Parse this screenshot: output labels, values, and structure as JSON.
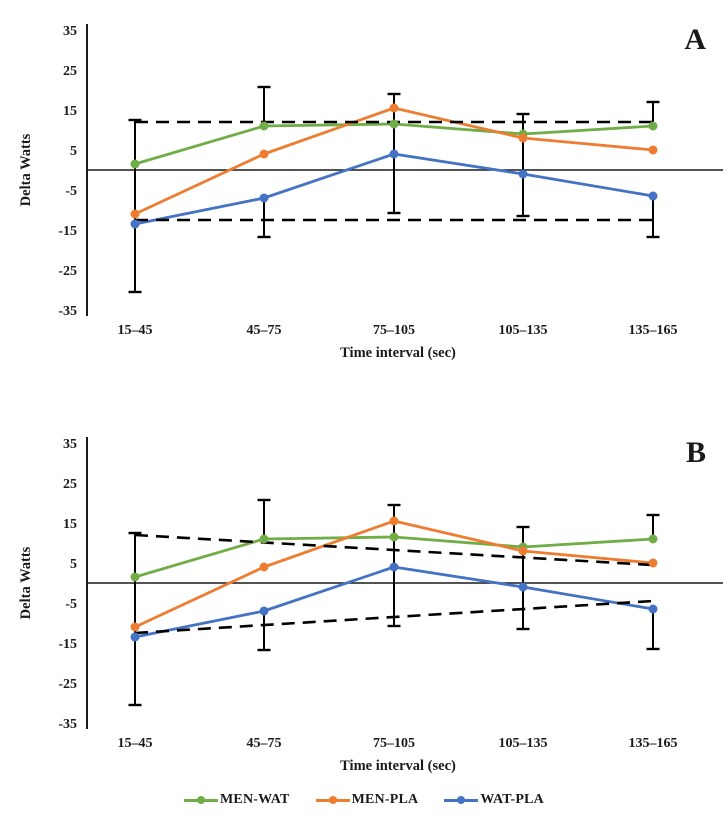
{
  "figure": {
    "background": "#ffffff",
    "axis_color": "#1a1a1a",
    "error_bar_color": "#000000",
    "dashed_line_color": "#000000"
  },
  "chart_data": {
    "type": "line",
    "categories": [
      "15–45",
      "45–75",
      "75–105",
      "105–135",
      "135–165"
    ],
    "xlabel": "Time interval (sec)",
    "ylabel": "Delta Watts",
    "ylim": [
      -35,
      35
    ],
    "yticks": [
      35,
      25,
      15,
      5,
      -5,
      -15,
      -25,
      -35
    ],
    "legend_position": "bottom-center",
    "grid": false,
    "panels": [
      {
        "label": "A",
        "series": [
          {
            "name": "MEN-WAT",
            "color": "#70AD47",
            "values": [
              1.5,
              11,
              11.5,
              9,
              11
            ]
          },
          {
            "name": "MEN-PLA",
            "color": "#ED7D31",
            "values": [
              -11,
              4,
              15.5,
              8,
              5
            ]
          },
          {
            "name": "WAT-PLA",
            "color": "#4472C4",
            "values": [
              -13.5,
              -7,
              4,
              -1,
              -6.5
            ]
          }
        ],
        "dashed_lines": [
          {
            "name": "upper-reference",
            "y_start": 12,
            "y_end": 12
          },
          {
            "name": "lower-reference",
            "y_start": -12.5,
            "y_end": -12.5
          }
        ],
        "error_bars": [
          {
            "cat": 0,
            "top": 12.5,
            "bottom": -30.5,
            "cap_top": true,
            "cap_bottom": true
          },
          {
            "cat": 1,
            "top": 20.75,
            "bottom": 11,
            "cap_top": true,
            "cap_bottom": false
          },
          {
            "cat": 1,
            "top": -7,
            "bottom": -16.75,
            "cap_top": false,
            "cap_bottom": true
          },
          {
            "cat": 2,
            "top": 19,
            "bottom": -10.75,
            "cap_top": true,
            "cap_bottom": true
          },
          {
            "cat": 3,
            "top": 14,
            "bottom": -11.5,
            "cap_top": true,
            "cap_bottom": true
          },
          {
            "cat": 4,
            "top": 17,
            "bottom": 11,
            "cap_top": true,
            "cap_bottom": false
          },
          {
            "cat": 4,
            "top": -6.5,
            "bottom": -16.75,
            "cap_top": false,
            "cap_bottom": true
          }
        ]
      },
      {
        "label": "B",
        "series": [
          {
            "name": "MEN-WAT",
            "color": "#70AD47",
            "values": [
              1.5,
              11,
              11.5,
              9,
              11
            ]
          },
          {
            "name": "MEN-PLA",
            "color": "#ED7D31",
            "values": [
              -11,
              4,
              15.5,
              8,
              5
            ]
          },
          {
            "name": "WAT-PLA",
            "color": "#4472C4",
            "values": [
              -13.5,
              -7,
              4,
              -1,
              -6.5
            ]
          }
        ],
        "dashed_lines": [
          {
            "name": "upper-trend",
            "y_start": 12,
            "y_end": 4.5
          },
          {
            "name": "lower-trend",
            "y_start": -12.5,
            "y_end": -4.5
          }
        ],
        "error_bars": [
          {
            "cat": 0,
            "top": 12.5,
            "bottom": -30.5,
            "cap_top": true,
            "cap_bottom": true
          },
          {
            "cat": 1,
            "top": 20.75,
            "bottom": 11,
            "cap_top": true,
            "cap_bottom": false
          },
          {
            "cat": 1,
            "top": -7,
            "bottom": -16.75,
            "cap_top": false,
            "cap_bottom": true
          },
          {
            "cat": 2,
            "top": 19.5,
            "bottom": -10.75,
            "cap_top": true,
            "cap_bottom": true
          },
          {
            "cat": 3,
            "top": 14,
            "bottom": -11.5,
            "cap_top": true,
            "cap_bottom": true
          },
          {
            "cat": 4,
            "top": 17,
            "bottom": 11,
            "cap_top": true,
            "cap_bottom": false
          },
          {
            "cat": 4,
            "top": -6.5,
            "bottom": -16.5,
            "cap_top": false,
            "cap_bottom": true
          }
        ]
      }
    ],
    "legend": [
      {
        "name": "MEN-WAT",
        "color": "#70AD47"
      },
      {
        "name": "MEN-PLA",
        "color": "#ED7D31"
      },
      {
        "name": "WAT-PLA",
        "color": "#4472C4"
      }
    ]
  }
}
